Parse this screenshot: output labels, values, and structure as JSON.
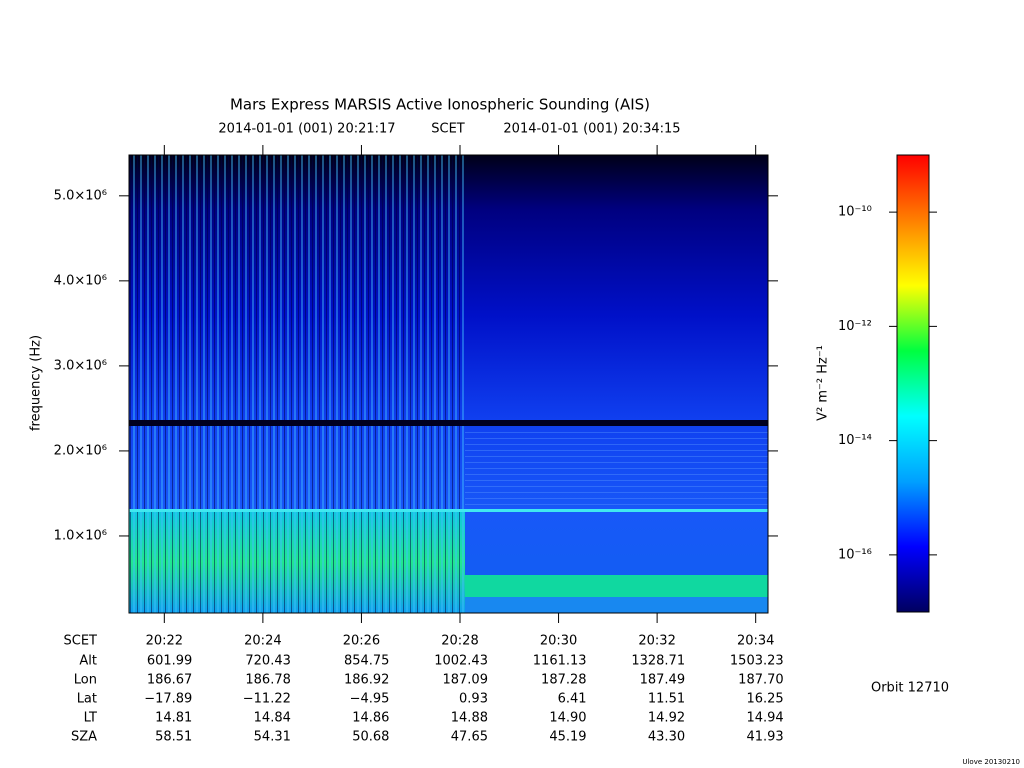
{
  "chart_data": {
    "type": "spectrogram",
    "title": "Mars Express MARSIS Active Ionospheric Sounding (AIS)",
    "start_time": "2014-01-01 (001) 20:21:17",
    "time_label": "SCET",
    "end_time": "2014-01-01 (001) 20:34:15",
    "ylabel": "frequency (Hz)",
    "ylim": [
      94000,
      5480000
    ],
    "yticks": [
      {
        "value": 1000000,
        "label": "1.0×10⁶"
      },
      {
        "value": 2000000,
        "label": "2.0×10⁶"
      },
      {
        "value": 3000000,
        "label": "3.0×10⁶"
      },
      {
        "value": 4000000,
        "label": "4.0×10⁶"
      },
      {
        "value": 5000000,
        "label": "5.0×10⁶"
      }
    ],
    "xlim": [
      73277,
      74055
    ],
    "xticks": [
      {
        "value": 73320,
        "label": "20:22"
      },
      {
        "value": 73440,
        "label": "20:24"
      },
      {
        "value": 73560,
        "label": "20:26"
      },
      {
        "value": 73680,
        "label": "20:28"
      },
      {
        "value": 73800,
        "label": "20:30"
      },
      {
        "value": 73920,
        "label": "20:32"
      },
      {
        "value": 74040,
        "label": "20:34"
      }
    ],
    "xtick_row_label": "SCET",
    "ephemeris": [
      {
        "name": "Alt",
        "values": [
          "601.99",
          "720.43",
          "854.75",
          "1002.43",
          "1161.13",
          "1328.71",
          "1503.23"
        ]
      },
      {
        "name": "Lon",
        "values": [
          "186.67",
          "186.78",
          "186.92",
          "187.09",
          "187.28",
          "187.49",
          "187.70"
        ]
      },
      {
        "name": "Lat",
        "values": [
          "−17.89",
          "−11.22",
          "−4.95",
          "0.93",
          "6.41",
          "11.51",
          "16.25"
        ]
      },
      {
        "name": "LT",
        "values": [
          "14.81",
          "14.84",
          "14.86",
          "14.88",
          "14.90",
          "14.92",
          "14.94"
        ]
      },
      {
        "name": "SZA",
        "values": [
          "58.51",
          "54.31",
          "50.68",
          "47.65",
          "45.19",
          "43.30",
          "41.93"
        ]
      }
    ],
    "zlabel": "V² m⁻² Hz⁻¹",
    "zlog": true,
    "zlim": [
      1e-17,
      1e-09
    ],
    "zticks": [
      {
        "value": 1e-10,
        "label": "10⁻¹⁰"
      },
      {
        "value": 1e-12,
        "label": "10⁻¹²"
      },
      {
        "value": 1e-14,
        "label": "10⁻¹⁴"
      },
      {
        "value": 1e-16,
        "label": "10⁻¹⁶"
      }
    ],
    "colormap": [
      "#000060",
      "#0000ff",
      "#00a0ff",
      "#00ffff",
      "#00ff40",
      "#ffff00",
      "#ff8000",
      "#ff0000"
    ],
    "orbit": "Orbit 12710",
    "credit": "Ulove 20130210"
  }
}
